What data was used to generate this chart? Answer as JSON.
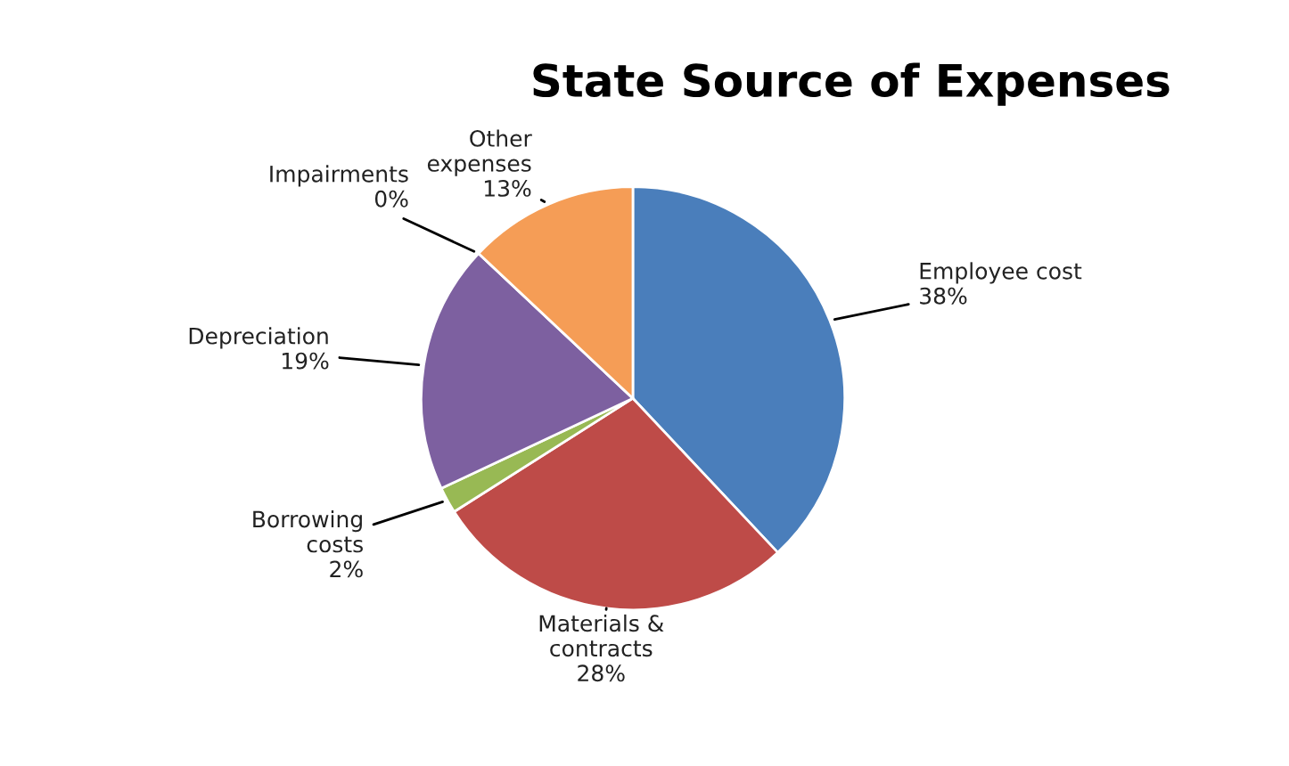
{
  "chart_data": {
    "type": "pie",
    "title": "State Source of Expenses",
    "categories": [
      "Employee cost",
      "Materials &\ncontracts",
      "Borrowing\ncosts",
      "Depreciation",
      "Impairments",
      "Other\nexpenses"
    ],
    "values": [
      38,
      28,
      2,
      19,
      0,
      13
    ],
    "value_labels": [
      "38%",
      "28%",
      "2%",
      "19%",
      "0%",
      "13%"
    ],
    "colors": [
      "#4a7ebb",
      "#be4b48",
      "#98b954",
      "#7d60a0",
      "#46aac5",
      "#f59d56"
    ]
  }
}
